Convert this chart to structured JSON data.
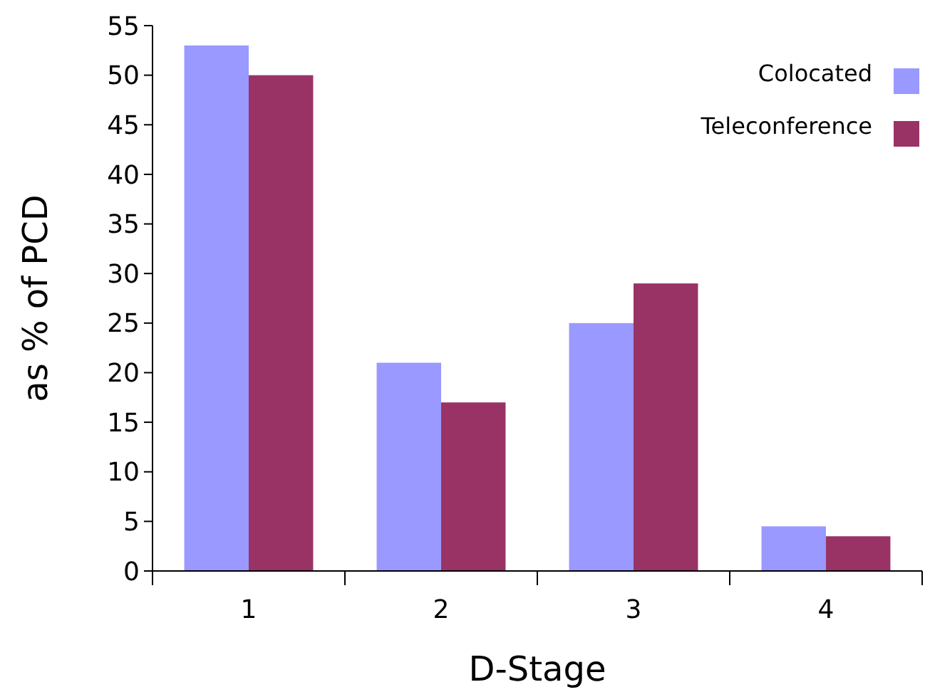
{
  "chart_data": {
    "type": "bar",
    "xlabel": "D-Stage",
    "ylabel": "as % of PCD",
    "categories": [
      "1",
      "2",
      "3",
      "4"
    ],
    "series": [
      {
        "name": "Colocated",
        "color": "#9999ff",
        "values": [
          53,
          21,
          25,
          4.5
        ]
      },
      {
        "name": "Teleconference",
        "color": "#993366",
        "values": [
          50,
          17,
          29,
          3.5
        ]
      }
    ],
    "ylim": [
      0,
      55
    ],
    "yticks": [
      0,
      5,
      10,
      15,
      20,
      25,
      30,
      35,
      40,
      45,
      50,
      55
    ],
    "grid": false,
    "legend": "top right"
  }
}
